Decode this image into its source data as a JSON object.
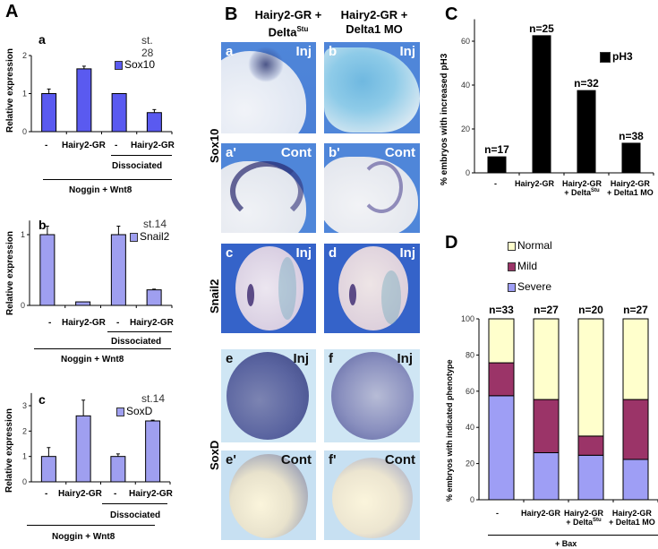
{
  "panelA": {
    "letter": "A",
    "subpanels": [
      {
        "letter": "a",
        "stage": "st. 28",
        "legend": "Sox10",
        "ylabel": "Relative expression",
        "xticklabels": [
          "-",
          "Hairy2-GR",
          "-",
          "Hairy2-GR"
        ],
        "group1": "Dissociated",
        "group2": "Noggin + Wnt8"
      },
      {
        "letter": "b",
        "stage": "st.14",
        "legend": "Snail2",
        "ylabel": "Relative expression",
        "xticklabels": [
          "-",
          "Hairy2-GR",
          "-",
          "Hairy2-GR"
        ],
        "group1": "Dissociated",
        "group2": "Noggin + Wnt8"
      },
      {
        "letter": "c",
        "stage": "st.14",
        "legend": "SoxD",
        "ylabel": "Relative expression",
        "xticklabels": [
          "-",
          "Hairy2-GR",
          "-",
          "Hairy2-GR"
        ],
        "group1": "Dissociated",
        "group2": "Noggin + Wnt8"
      }
    ]
  },
  "panelB": {
    "letter": "B",
    "col_heads": [
      {
        "line1": "Hairy2-GR +",
        "line2": "Delta",
        "sup": "Stu"
      },
      {
        "line1": "Hairy2-GR +",
        "line2": "Delta1 MO",
        "sup": ""
      }
    ],
    "row_heads": [
      "Sox10",
      "Snail2",
      "SoxD"
    ],
    "images": [
      {
        "label": "a",
        "tag": "Inj"
      },
      {
        "label": "b",
        "tag": "Inj"
      },
      {
        "label": "a'",
        "tag": "Cont"
      },
      {
        "label": "b'",
        "tag": "Cont"
      },
      {
        "label": "c",
        "tag": "Inj"
      },
      {
        "label": "d",
        "tag": "Inj"
      },
      {
        "label": "e",
        "tag": "Inj"
      },
      {
        "label": "f",
        "tag": "Inj"
      },
      {
        "label": "e'",
        "tag": "Cont"
      },
      {
        "label": "f'",
        "tag": "Cont"
      }
    ]
  },
  "panelC": {
    "letter": "C",
    "xlabels": [
      [
        "-"
      ],
      [
        "Hairy2-GR"
      ],
      [
        "Hairy2-GR",
        "+ Delta",
        "Stu"
      ],
      [
        "Hairy2-GR",
        "+ Delta1 MO",
        ""
      ]
    ]
  },
  "panelD": {
    "letter": "D",
    "xlabels": [
      [
        "-"
      ],
      [
        "Hairy2-GR"
      ],
      [
        "Hairy2-GR",
        "+ Delta",
        "Stu"
      ],
      [
        "Hairy2-GR",
        "+ Delta1 MO",
        ""
      ]
    ],
    "group": "+ Bax"
  },
  "chart_data": [
    {
      "id": "A-a",
      "type": "bar",
      "title": "Sox10 (st. 28)",
      "categories": [
        "-",
        "Hairy2-GR",
        "- (Dissociated)",
        "Hairy2-GR (Dissociated)"
      ],
      "series": [
        {
          "name": "Sox10",
          "values": [
            1.0,
            1.65,
            1.0,
            0.5
          ],
          "errors": [
            0.12,
            0.07,
            0.0,
            0.08
          ],
          "color": "#5a5af0"
        }
      ],
      "xlabel": "",
      "ylabel": "Relative expression",
      "ylim": [
        0,
        2
      ],
      "yticks": [
        0,
        1,
        2
      ],
      "legend": "top-right"
    },
    {
      "id": "A-b",
      "type": "bar",
      "title": "Snail2 (st.14)",
      "categories": [
        "-",
        "Hairy2-GR",
        "- (Dissociated)",
        "Hairy2-GR (Dissociated)"
      ],
      "series": [
        {
          "name": "Snail2",
          "values": [
            1.0,
            0.05,
            1.0,
            0.22
          ],
          "errors": [
            0.12,
            0.0,
            0.12,
            0.01
          ],
          "color": "#9f9ff0"
        }
      ],
      "xlabel": "",
      "ylabel": "Relative expression",
      "ylim": [
        0,
        1.2
      ],
      "yticks": [
        0,
        1
      ],
      "legend": "top-right"
    },
    {
      "id": "A-c",
      "type": "bar",
      "title": "SoxD (st.14)",
      "categories": [
        "-",
        "Hairy2-GR",
        "- (Dissociated)",
        "Hairy2-GR (Dissociated)"
      ],
      "series": [
        {
          "name": "SoxD",
          "values": [
            1.0,
            2.6,
            1.0,
            2.4
          ],
          "errors": [
            0.35,
            0.62,
            0.1,
            0.03
          ],
          "color": "#9f9ff0"
        }
      ],
      "xlabel": "",
      "ylabel": "Relative expression",
      "ylim": [
        0,
        3.5
      ],
      "yticks": [
        0,
        1,
        2,
        3
      ],
      "legend": "top-right"
    },
    {
      "id": "C",
      "type": "bar",
      "title": "",
      "categories": [
        "-",
        "Hairy2-GR",
        "Hairy2-GR + DeltaStu",
        "Hairy2-GR + Delta1 MO"
      ],
      "series": [
        {
          "name": "pH3",
          "values": [
            7.3,
            62.5,
            37.5,
            13.5
          ],
          "color": "#000000"
        }
      ],
      "annotations": [
        "n=17",
        "n=25",
        "n=32",
        "n=38"
      ],
      "xlabel": "",
      "ylabel": "% embryos with increased  pH3",
      "ylim": [
        0,
        70
      ],
      "yticks": [
        0,
        20,
        40,
        60
      ],
      "legend": "top-right"
    },
    {
      "id": "D",
      "type": "bar",
      "stacked": true,
      "title": "",
      "categories": [
        "-",
        "Hairy2-GR",
        "Hairy2-GR + DeltaStu",
        "Hairy2-GR + Delta1 MO"
      ],
      "series": [
        {
          "name": "Severe",
          "values": [
            57.5,
            26,
            24.6,
            22.3
          ],
          "color": "#9e9ef5"
        },
        {
          "name": "Mild",
          "values": [
            18.2,
            29.4,
            10.6,
            33.1
          ],
          "color": "#9b3468"
        },
        {
          "name": "Normal",
          "values": [
            24.3,
            44.6,
            64.8,
            44.6
          ],
          "color": "#ffffcc"
        }
      ],
      "legend_order": [
        "Normal",
        "Mild",
        "Severe"
      ],
      "annotations": [
        "n=33",
        "n=27",
        "n=20",
        "n=27"
      ],
      "xlabel": "+ Bax",
      "ylabel": "% embryos with indicated phenotype",
      "ylim": [
        0,
        100
      ],
      "yticks": [
        0,
        20,
        40,
        60,
        80,
        100
      ],
      "legend": "top-left"
    }
  ]
}
